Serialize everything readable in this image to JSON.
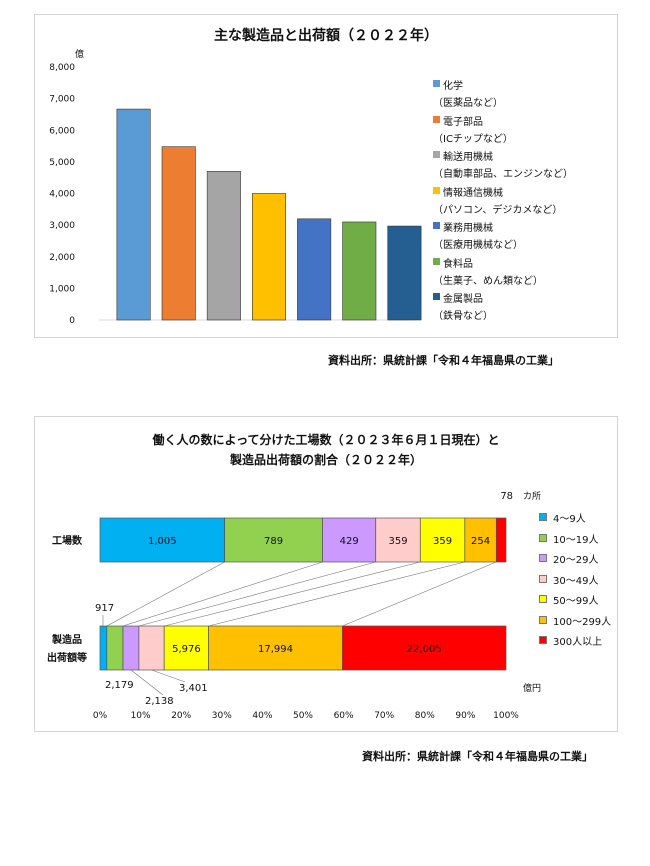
{
  "chart_data": [
    {
      "type": "bar",
      "title": "主な製造品と出荷額（２０２２年）",
      "ylabel": "億",
      "ylim": [
        0,
        8000
      ],
      "yticks": [
        "0",
        "1,000",
        "2,000",
        "3,000",
        "4,000",
        "5,000",
        "6,000",
        "7,000",
        "8,000"
      ],
      "categories": [
        "化学",
        "電子部品",
        "輸送用機械",
        "情報通信機械",
        "業務用機械",
        "食料品",
        "金属製品"
      ],
      "legend_sub": [
        "（医薬品など）",
        "（ICチップなど）",
        "（自動車部品、エンジンなど）",
        "（パソコン、デジカメなど）",
        "（医療用機械など）",
        "（生菓子、めん類など）",
        "（鉄骨など）"
      ],
      "values": [
        6670,
        5480,
        4700,
        4000,
        3200,
        3100,
        2970
      ],
      "colors": [
        "#5b9bd5",
        "#ed7d31",
        "#a5a5a5",
        "#ffc000",
        "#4472c4",
        "#70ad47",
        "#255e91"
      ],
      "source": "資料出所：県統計課「令和４年福島県の工業」"
    },
    {
      "type": "bar",
      "stacked": "100%",
      "orientation": "horizontal",
      "title_line1": "働く人の数によって分けた工場数（２０２３年６月１日現在）と",
      "title_line2": "製造品出荷額の割合（２０２２年）",
      "categories": [
        "工場数",
        "製造品出荷額等"
      ],
      "category_labels": [
        [
          "工場数"
        ],
        [
          "製造品",
          "出荷額等"
        ]
      ],
      "unit_top": "カ所",
      "unit_bottom": "億円",
      "xticks": [
        "0%",
        "10%",
        "20%",
        "30%",
        "40%",
        "50%",
        "60%",
        "70%",
        "80%",
        "90%",
        "100%"
      ],
      "series": [
        {
          "name": "4～9人",
          "color": "#00b0f0",
          "values": [
            1005,
            917
          ],
          "labels": [
            "1,005",
            "917"
          ]
        },
        {
          "name": "10～19人",
          "color": "#92d050",
          "values": [
            789,
            2179
          ],
          "labels": [
            "789",
            "2,179"
          ]
        },
        {
          "name": "20～29人",
          "color": "#cc99ff",
          "values": [
            429,
            2138
          ],
          "labels": [
            "429",
            "2,138"
          ]
        },
        {
          "name": "30～49人",
          "color": "#ffcccc",
          "values": [
            359,
            3401
          ],
          "labels": [
            "359",
            "3,401"
          ]
        },
        {
          "name": "50～99人",
          "color": "#ffff00",
          "values": [
            359,
            5976
          ],
          "labels": [
            "359",
            "5,976"
          ]
        },
        {
          "name": "100～299人",
          "color": "#ffc000",
          "values": [
            254,
            17994
          ],
          "labels": [
            "254",
            "17,994"
          ]
        },
        {
          "name": "300人以上",
          "color": "#ff0000",
          "values": [
            78,
            22005
          ],
          "labels": [
            "78",
            "22,005"
          ]
        }
      ],
      "source": "資料出所：県統計課「令和４年福島県の工業」"
    }
  ]
}
